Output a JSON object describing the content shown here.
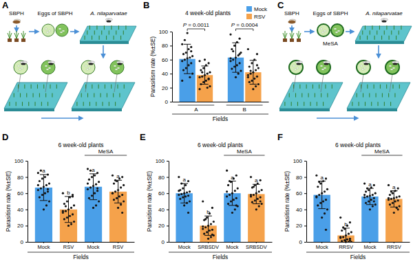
{
  "diagrams": [
    {
      "title": "A",
      "labels": [
        "SBPH",
        "Eggs of SBPH",
        "A. nilaparvatae"
      ]
    },
    {
      "title": "C",
      "labels": [
        "SBPH",
        "Eggs of SBPH",
        "A. nilaparvatae",
        "MeSA"
      ]
    }
  ],
  "chart_data": [
    {
      "type": "bar",
      "title": "B",
      "subtitle": "4 week-old plants",
      "ylabel": "Parasitism rate (%±SE)",
      "xlabel": "Fields",
      "categories": [
        "A",
        "B"
      ],
      "ylim": [
        0,
        100
      ],
      "yticks": [
        0,
        20,
        40,
        60,
        80,
        100
      ],
      "legend": "upper right",
      "p_labels": [
        "P = 0.0011",
        "P = 0.0004"
      ],
      "series": [
        {
          "name": "Mock",
          "color": "#4a9fe8",
          "values": [
            61,
            63
          ],
          "errors": [
            21,
            21
          ],
          "points": [
            [
              82,
              78,
              75,
              70,
              68,
              65,
              63,
              62,
              60,
              58,
              55,
              52,
              48,
              45,
              40,
              35,
              98,
              88,
              30,
              72
            ],
            [
              96,
              90,
              85,
              80,
              75,
              70,
              66,
              63,
              60,
              58,
              55,
              52,
              50,
              47,
              44,
              40,
              35,
              72,
              62,
              68
            ]
          ]
        },
        {
          "name": "RSV",
          "color": "#f5a24b",
          "values": [
            38,
            42
          ],
          "errors": [
            13,
            17
          ],
          "points": [
            [
              58,
              55,
              52,
              48,
              45,
              42,
              40,
              38,
              36,
              35,
              33,
              30,
              28,
              25,
              22,
              20,
              60,
              42,
              18,
              32
            ],
            [
              75,
              68,
              60,
              55,
              50,
              48,
              45,
              42,
              40,
              38,
              36,
              33,
              30,
              28,
              25,
              22,
              18,
              44,
              35,
              52
            ]
          ]
        }
      ]
    },
    {
      "type": "bar",
      "title": "D",
      "subtitle": "6 week-old plants",
      "ylabel": "Parasitism rate (%±SE)",
      "xlabel": "Fields",
      "categories": [
        "Mock",
        "RSV",
        "Mock",
        "RSV"
      ],
      "group_labels": [
        null,
        "MeSA"
      ],
      "letters": [
        "a",
        "b",
        "a",
        "a"
      ],
      "ylim": [
        0,
        100
      ],
      "yticks": [
        0,
        20,
        40,
        60,
        80,
        100
      ],
      "series": [
        {
          "colors": [
            "#4a9fe8",
            "#f5a24b",
            "#4a9fe8",
            "#f5a24b"
          ],
          "values": [
            67,
            40,
            68,
            62
          ],
          "errors": [
            16,
            16,
            16,
            14
          ],
          "points": [
            [
              85,
              83,
              80,
              78,
              75,
              72,
              70,
              68,
              66,
              64,
              62,
              60,
              58,
              55,
              50,
              45,
              40,
              88,
              70,
              65
            ],
            [
              60,
              58,
              55,
              50,
              47,
              45,
              42,
              40,
              38,
              36,
              34,
              32,
              30,
              28,
              25,
              22,
              20,
              44,
              38,
              56
            ],
            [
              90,
              85,
              82,
              80,
              77,
              74,
              71,
              69,
              67,
              65,
              63,
              60,
              57,
              54,
              50,
              45,
              42,
              88,
              72,
              66
            ],
            [
              82,
              80,
              78,
              75,
              72,
              70,
              67,
              64,
              62,
              60,
              58,
              56,
              54,
              52,
              50,
              46,
              42,
              76,
              60,
              36
            ]
          ]
        }
      ]
    },
    {
      "type": "bar",
      "title": "E",
      "subtitle": "6 week-old plants",
      "ylabel": "Parasitism rate (%±SE)",
      "xlabel": "Fields",
      "categories": [
        "Mock",
        "SRBSDV",
        "Mock",
        "SRBSDV"
      ],
      "group_labels": [
        null,
        "MeSA"
      ],
      "letters": [
        "a",
        "b",
        "a",
        "a"
      ],
      "ylim": [
        0,
        100
      ],
      "yticks": [
        0,
        20,
        40,
        60,
        80,
        100
      ],
      "series": [
        {
          "colors": [
            "#4a9fe8",
            "#f5a24b",
            "#4a9fe8",
            "#f5a24b"
          ],
          "values": [
            60,
            20,
            60,
            59
          ],
          "errors": [
            12,
            12,
            15,
            12
          ],
          "points": [
            [
              80,
              75,
              70,
              66,
              64,
              62,
              61,
              60,
              59,
              58,
              57,
              56,
              55,
              53,
              50,
              48,
              45,
              72,
              63,
              36
            ],
            [
              50,
              42,
              35,
              30,
              27,
              25,
              22,
              20,
              18,
              16,
              15,
              14,
              12,
              10,
              8,
              6,
              4,
              28,
              19,
              9
            ],
            [
              88,
              82,
              78,
              74,
              70,
              66,
              63,
              60,
              58,
              56,
              54,
              52,
              50,
              47,
              44,
              40,
              36,
              75,
              62,
              45
            ],
            [
              80,
              76,
              72,
              70,
              67,
              64,
              62,
              60,
              58,
              56,
              55,
              53,
              51,
              49,
              47,
              44,
              40,
              68,
              58,
              50
            ]
          ]
        }
      ]
    },
    {
      "type": "bar",
      "title": "F",
      "subtitle": "6 week-old plants",
      "ylabel": "Parasitism rate (%±SE)",
      "xlabel": "Fields",
      "categories": [
        "Mock",
        "RRSV",
        "Mock",
        "RRSV"
      ],
      "group_labels": [
        null,
        "MeSA"
      ],
      "letters": [
        "a",
        "b",
        "a",
        "a"
      ],
      "ylim": [
        0,
        100
      ],
      "yticks": [
        0,
        20,
        40,
        60,
        80,
        100
      ],
      "series": [
        {
          "colors": [
            "#4a9fe8",
            "#f5a24b",
            "#4a9fe8",
            "#f5a24b"
          ],
          "values": [
            58,
            8,
            56,
            53
          ],
          "errors": [
            17,
            9,
            10,
            10
          ],
          "points": [
            [
              82,
              78,
              75,
              72,
              68,
              65,
              62,
              60,
              58,
              55,
              52,
              50,
              48,
              45,
              40,
              35,
              30,
              74,
              56,
              15
            ],
            [
              30,
              24,
              20,
              16,
              14,
              12,
              10,
              8,
              6,
              5,
              4,
              3,
              2,
              1,
              0,
              0,
              0,
              18,
              6,
              2
            ],
            [
              72,
              70,
              67,
              64,
              62,
              60,
              58,
              57,
              56,
              55,
              54,
              52,
              50,
              48,
              46,
              44,
              40,
              66,
              58,
              50
            ],
            [
              70,
              66,
              63,
              60,
              58,
              56,
              55,
              54,
              53,
              52,
              51,
              50,
              48,
              46,
              44,
              42,
              36,
              62,
              54,
              40
            ]
          ]
        }
      ]
    }
  ]
}
